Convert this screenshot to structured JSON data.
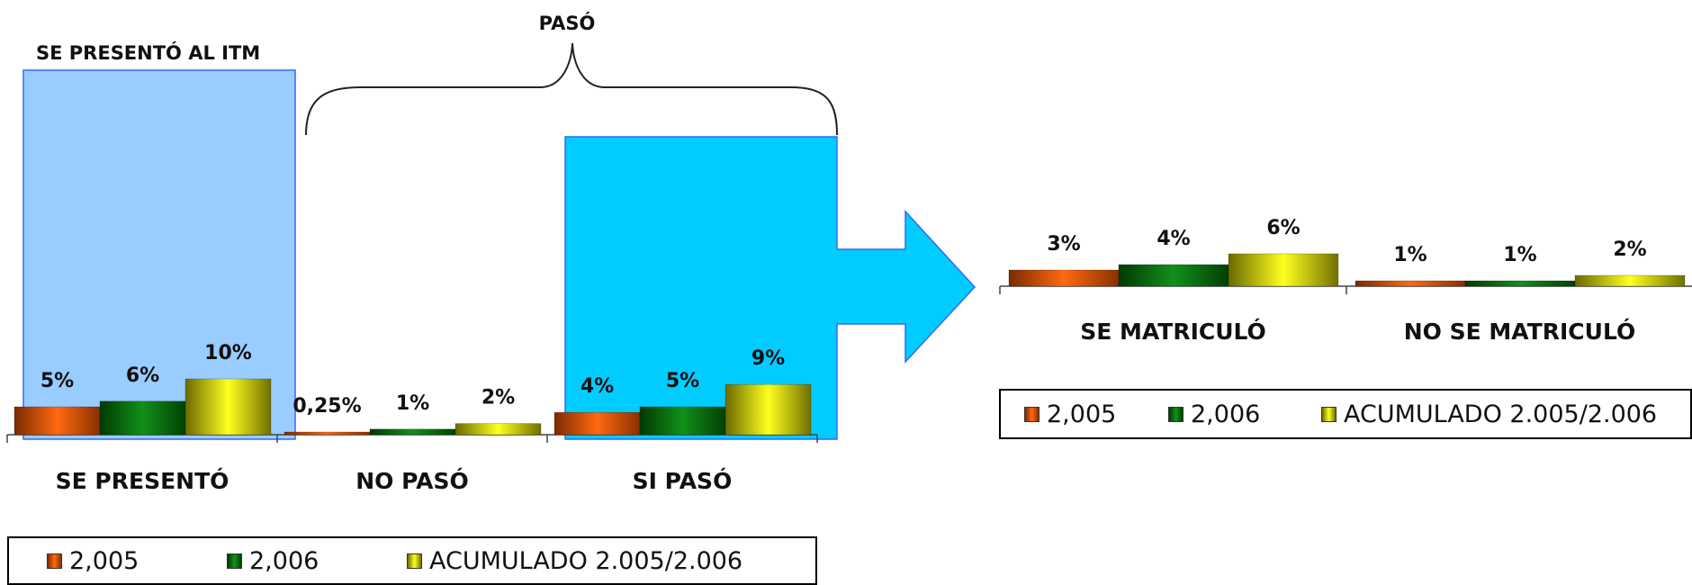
{
  "annotations": {
    "presented_box_title": "SE PRESENTÓ AL ITM",
    "passed_brace_label": "PASÓ"
  },
  "colors": {
    "series_2005": "#e0520a",
    "series_2006": "#0a6e0a",
    "series_accum": "#e8e800",
    "presented_box": "#99ccff",
    "passed_box": "#00ccff",
    "arrow": "#00ccff"
  },
  "legend": {
    "items": [
      {
        "label": "2,005",
        "color": "#e0520a"
      },
      {
        "label": "2,006",
        "color": "#0a6e0a"
      },
      {
        "label": "ACUMULADO 2.005/2.006",
        "color": "#e8e800"
      }
    ]
  },
  "chart_data": [
    {
      "type": "bar",
      "categories": [
        "SE PRESENTÓ",
        "NO PASÓ",
        "SI PASÓ"
      ],
      "series": [
        {
          "name": "2,005",
          "values": [
            5,
            0.25,
            4
          ],
          "labels": [
            "5%",
            "0,25%",
            "4%"
          ]
        },
        {
          "name": "2,006",
          "values": [
            6,
            1,
            5
          ],
          "labels": [
            "6%",
            "1%",
            "5%"
          ]
        },
        {
          "name": "ACUMULADO 2.005/2.006",
          "values": [
            10,
            2,
            9
          ],
          "labels": [
            "10%",
            "2%",
            "9%"
          ]
        }
      ],
      "legend_position": "bottom",
      "grid": false
    },
    {
      "type": "bar",
      "categories": [
        "SE MATRICULÓ",
        "NO SE MATRICULÓ"
      ],
      "series": [
        {
          "name": "2,005",
          "values": [
            3,
            1
          ],
          "labels": [
            "3%",
            "1%"
          ]
        },
        {
          "name": "2,006",
          "values": [
            4,
            1
          ],
          "labels": [
            "4%",
            "1%"
          ]
        },
        {
          "name": "ACUMULADO 2.005/2.006",
          "values": [
            6,
            2
          ],
          "labels": [
            "6%",
            "2%"
          ]
        }
      ],
      "legend_position": "bottom",
      "grid": false
    }
  ]
}
